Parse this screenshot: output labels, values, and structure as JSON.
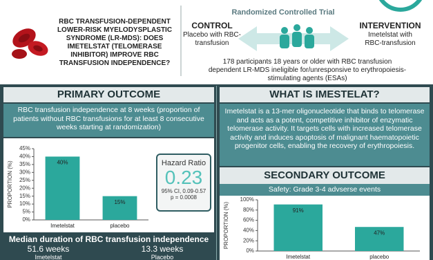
{
  "header": {
    "question": "RBC TRANSFUSION-DEPENDENT LOWER-RISK MYELODYSPLASTIC SYNDROME (LR-MDS): DOES IMETELSTAT (TELOMERASE INHIBITOR) IMPROVE RBC TRANSFUSION INDEPENDENCE?",
    "trial": "Randomized Controlled Trial",
    "control": {
      "title": "CONTROL",
      "text": "Placebo with RBC-transfusion"
    },
    "intervention": {
      "title": "INTERVENTION",
      "text": "Imetelstat with RBC-transfusion"
    },
    "participants": "178 participants 18 years or older with RBC transfusion dependent LR-MDS ineligible for/unresponsive to erythropoiesis-stimulating agents (ESAs)"
  },
  "primary_outcome": {
    "title": "PRIMARY OUTCOME",
    "description": "RBC transfusion independence at 8 weeks (proportion of patients without RBC transfusions for at least 8 consecutive weeks starting at randomization)",
    "chart": {
      "type": "bar",
      "ylabel": "PROPORTION (%)",
      "categories": [
        "Imetelstat",
        "placebo"
      ],
      "values": [
        40,
        15
      ],
      "value_labels": [
        "40%",
        "15%"
      ],
      "color": "#2ba89c",
      "ylim": [
        0,
        45
      ],
      "yticks": [
        {
          "value": 0,
          "label": "0%"
        },
        {
          "value": 5,
          "label": "5%"
        },
        {
          "value": 10,
          "label": "10%"
        },
        {
          "value": 15,
          "label": "15%"
        },
        {
          "value": 20,
          "label": "20%"
        },
        {
          "value": 25,
          "label": "25%"
        },
        {
          "value": 30,
          "label": "30%"
        },
        {
          "value": 35,
          "label": "35%"
        },
        {
          "value": 40,
          "label": "40%"
        },
        {
          "value": 45,
          "label": "45%"
        }
      ]
    },
    "hazard_ratio": {
      "title": "Hazard Ratio",
      "value": 0.23,
      "ci": "95% CI, 0.09-0.57",
      "p": "p = 0.0008"
    }
  },
  "median_duration": {
    "title": "Median duration of RBC transfusion independence",
    "imetelstat": {
      "value": "51.6 weeks",
      "label": "Imetelstat"
    },
    "placebo": {
      "value": "13.3 weeks",
      "label": "Placebo"
    }
  },
  "what_is": {
    "title": "WHAT IS IMESTELAT?",
    "text": "Imetelstat is a 13-mer oligonucleotide that binds to telomerase and acts as a potent, competitive inhibitor of enzymatic telomerase activity. It targets cells with increased telomerase activity and induces apoptosis of malignant haematopoietic progenitor cells, enabling the recovery of erythropoiesis."
  },
  "secondary_outcome": {
    "title": "SECONDARY OUTCOME",
    "subtitle": "Safety: Grade 3-4 advserse events",
    "chart": {
      "type": "bar",
      "ylabel": "PROPORTION (%)",
      "categories": [
        "Imetelstat",
        "placebo"
      ],
      "values": [
        91,
        47
      ],
      "value_labels": [
        "91%",
        "47%"
      ],
      "color": "#2ba89c",
      "ylim": [
        0,
        100
      ],
      "yticks": [
        {
          "value": 0,
          "label": "0%"
        },
        {
          "value": 20,
          "label": "20%"
        },
        {
          "value": 40,
          "label": "40%"
        },
        {
          "value": 60,
          "label": "60%"
        },
        {
          "value": 80,
          "label": "80%"
        },
        {
          "value": 100,
          "label": "100%"
        }
      ]
    }
  }
}
